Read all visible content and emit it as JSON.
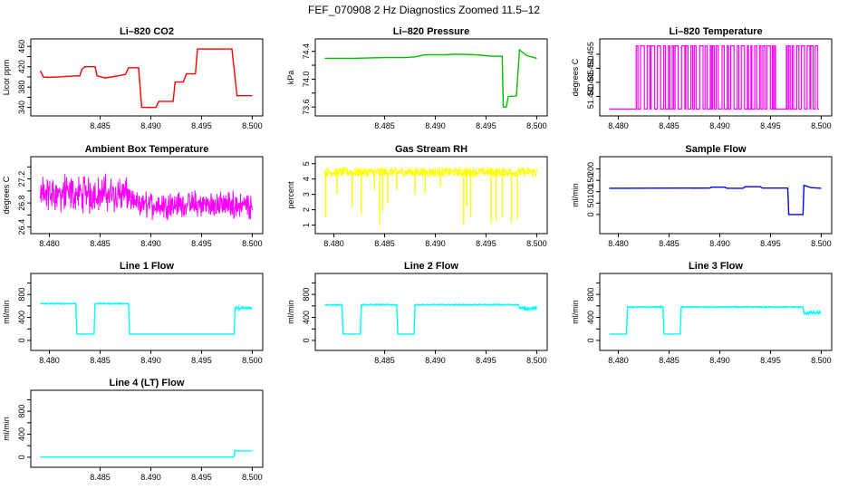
{
  "figure_title": "FEF_070908  2 Hz Diagnostics Zoomed 11.5–12",
  "chart_data": [
    {
      "type": "line",
      "title": "Li–820 CO2",
      "xlabel": "",
      "ylabel": "Licor ppm",
      "color": "#ff0000",
      "xlim": [
        8.4787,
        8.5005
      ],
      "ylim": [
        334,
        464
      ],
      "xticks": [
        8.49,
        8.495,
        8.5,
        8.485
      ],
      "xtick_labels": [
        "8.490",
        "8.495",
        "8.500",
        "8.485"
      ],
      "yticks": [
        340,
        360,
        380,
        400,
        420,
        440,
        460
      ],
      "ytick_labels": [
        "340",
        "",
        "380",
        "",
        "420",
        "",
        "460"
      ],
      "points": [
        [
          8.4791,
          412
        ],
        [
          8.4794,
          400
        ],
        [
          8.4798,
          399
        ],
        [
          8.481,
          400
        ],
        [
          8.4825,
          402
        ],
        [
          8.483,
          402
        ],
        [
          8.4832,
          415
        ],
        [
          8.4835,
          420
        ],
        [
          8.4845,
          420
        ],
        [
          8.4847,
          402
        ],
        [
          8.4855,
          398
        ],
        [
          8.487,
          403
        ],
        [
          8.4875,
          405
        ],
        [
          8.4878,
          418
        ],
        [
          8.4885,
          418
        ],
        [
          8.4888,
          418
        ],
        [
          8.4891,
          340
        ],
        [
          8.4905,
          340
        ],
        [
          8.4908,
          352
        ],
        [
          8.4922,
          352
        ],
        [
          8.4924,
          390
        ],
        [
          8.4932,
          390
        ],
        [
          8.4935,
          406
        ],
        [
          8.4944,
          406
        ],
        [
          8.4946,
          455
        ],
        [
          8.498,
          455
        ],
        [
          8.4985,
          363
        ],
        [
          8.5,
          363
        ]
      ]
    },
    {
      "type": "line",
      "title": "Li–820 Pressure",
      "xlabel": "",
      "ylabel": "kPa",
      "color": "#00bb00",
      "xlim": [
        8.4787,
        8.5005
      ],
      "ylim": [
        73.55,
        74.5
      ],
      "xticks": [
        8.485,
        8.49,
        8.495,
        8.5
      ],
      "xtick_labels": [
        "8.485",
        "8.490",
        "8.495",
        "8.500"
      ],
      "yticks": [
        73.6,
        73.8,
        74.0,
        74.2,
        74.4
      ],
      "ytick_labels": [
        "73.6",
        "",
        "74.0",
        "",
        "74.4"
      ],
      "points": [
        [
          8.4791,
          74.3
        ],
        [
          8.482,
          74.3
        ],
        [
          8.485,
          74.31
        ],
        [
          8.487,
          74.31
        ],
        [
          8.488,
          74.32
        ],
        [
          8.489,
          74.35
        ],
        [
          8.491,
          74.35
        ],
        [
          8.492,
          74.36
        ],
        [
          8.494,
          74.35
        ],
        [
          8.4955,
          74.33
        ],
        [
          8.4966,
          74.33
        ],
        [
          8.4967,
          73.6
        ],
        [
          8.497,
          73.6
        ],
        [
          8.4972,
          73.75
        ],
        [
          8.498,
          73.76
        ],
        [
          8.4983,
          74.42
        ],
        [
          8.499,
          74.34
        ],
        [
          8.5,
          74.3
        ]
      ]
    },
    {
      "type": "line",
      "title": "Li–820 Temperature",
      "xlabel": "",
      "ylabel": "degrees C",
      "color": "#ff00ff",
      "xlim": [
        8.4787,
        8.5005
      ],
      "ylim": [
        51.435,
        51.4585
      ],
      "xticks": [
        8.48,
        8.485,
        8.49,
        8.495,
        8.5
      ],
      "xtick_labels": [
        "8.480",
        "8.485",
        "8.490",
        "8.495",
        "8.500"
      ],
      "yticks": [
        51.44,
        51.445,
        51.45,
        51.455
      ],
      "ytick_labels": [
        "51.440",
        "51.445",
        "51.450",
        "51.455"
      ],
      "square_wave": {
        "low": 51.4355,
        "high": 51.458,
        "active_ranges": [
          [
            8.4815,
            8.4955
          ],
          [
            8.4963,
            8.4998
          ]
        ],
        "switch_period": 0.00022
      }
    },
    {
      "type": "line",
      "title": "Ambient Box Temperature",
      "xlabel": "",
      "ylabel": "degrees C",
      "color": "#ff00ff",
      "xlim": [
        8.4787,
        8.5005
      ],
      "ylim": [
        26.38,
        27.48
      ],
      "xticks": [
        8.48,
        8.485,
        8.49,
        8.495,
        8.5
      ],
      "xtick_labels": [
        "8.480",
        "8.485",
        "8.490",
        "8.495",
        "8.500"
      ],
      "yticks": [
        26.4,
        26.6,
        26.8,
        27.0,
        27.2,
        27.4
      ],
      "ytick_labels": [
        "26.4",
        "",
        "26.8",
        "",
        "27.2",
        ""
      ],
      "noise_segments": [
        {
          "x": [
            8.4791,
            8.488
          ],
          "center": 26.95,
          "amp": 0.28
        },
        {
          "x": [
            8.488,
            8.5
          ],
          "center": 26.77,
          "amp": 0.2
        }
      ]
    },
    {
      "type": "line",
      "title": "Gas Stream RH",
      "xlabel": "",
      "ylabel": "percent",
      "color": "#ffff00",
      "xlim": [
        8.4787,
        8.5005
      ],
      "ylim": [
        0.8,
        5.1
      ],
      "xticks": [
        8.48,
        8.485,
        8.49,
        8.495,
        8.5
      ],
      "xtick_labels": [
        "8.480",
        "8.485",
        "8.490",
        "8.495",
        "8.500"
      ],
      "yticks": [
        1,
        2,
        3,
        4,
        5
      ],
      "ytick_labels": [
        "1",
        "2",
        "3",
        "4",
        "5"
      ],
      "base": 4.45,
      "amp": 0.3,
      "x_range": [
        8.4791,
        8.5
      ],
      "spikes": [
        [
          8.4792,
          1.5
        ],
        [
          8.4803,
          3.0
        ],
        [
          8.4818,
          2.2
        ],
        [
          8.4827,
          1.7
        ],
        [
          8.484,
          3.3
        ],
        [
          8.4845,
          1.0
        ],
        [
          8.4848,
          1.9
        ],
        [
          8.4853,
          2.4
        ],
        [
          8.4862,
          3.3
        ],
        [
          8.488,
          3.0
        ],
        [
          8.489,
          3.1
        ],
        [
          8.4905,
          3.5
        ],
        [
          8.4928,
          1.0
        ],
        [
          8.4931,
          2.2
        ],
        [
          8.4935,
          1.5
        ],
        [
          8.4955,
          1.1
        ],
        [
          8.496,
          1.3
        ],
        [
          8.4966,
          1.5
        ],
        [
          8.4975,
          1.2
        ],
        [
          8.4981,
          1.4
        ]
      ]
    },
    {
      "type": "line",
      "title": "Sample Flow",
      "xlabel": "",
      "ylabel": "ml/min",
      "color": "#0000ff",
      "xlim": [
        8.4787,
        8.5005
      ],
      "ylim": [
        -60,
        230
      ],
      "xticks": [
        8.48,
        8.485,
        8.49,
        8.495,
        8.5
      ],
      "xtick_labels": [
        "8.480",
        "8.485",
        "8.490",
        "8.495",
        "8.500"
      ],
      "yticks": [
        0,
        50,
        100,
        150,
        200
      ],
      "ytick_labels": [
        "0",
        "50",
        "100",
        "150",
        "200"
      ],
      "points": [
        [
          8.4791,
          115
        ],
        [
          8.489,
          116
        ],
        [
          8.4892,
          120
        ],
        [
          8.4905,
          120
        ],
        [
          8.4907,
          115
        ],
        [
          8.4923,
          115
        ],
        [
          8.4925,
          122
        ],
        [
          8.494,
          122
        ],
        [
          8.4942,
          116
        ],
        [
          8.4967,
          116
        ],
        [
          8.4968,
          0
        ],
        [
          8.4982,
          0
        ],
        [
          8.4983,
          128
        ],
        [
          8.499,
          118
        ],
        [
          8.5,
          115
        ]
      ]
    },
    {
      "type": "line",
      "title": "Line 1 Flow",
      "xlabel": "",
      "ylabel": "ml/min",
      "color": "#00ffff",
      "xlim": [
        8.4787,
        8.5005
      ],
      "ylim": [
        -80,
        1070
      ],
      "xticks": [
        8.48,
        8.485,
        8.49,
        8.495,
        8.5
      ],
      "xtick_labels": [
        "8.480",
        "8.485",
        "8.490",
        "8.495",
        "8.500"
      ],
      "yticks": [
        0,
        200,
        400,
        600,
        800,
        1000
      ],
      "ytick_labels": [
        "0",
        "",
        "400",
        "",
        "800",
        ""
      ],
      "points": [
        [
          8.4791,
          640
        ],
        [
          8.4826,
          640
        ],
        [
          8.4827,
          110
        ],
        [
          8.4844,
          110
        ],
        [
          8.4845,
          640
        ],
        [
          8.4878,
          640
        ],
        [
          8.4879,
          110
        ],
        [
          8.4982,
          110
        ],
        [
          8.4983,
          560
        ],
        [
          8.5,
          560
        ]
      ],
      "noisy_ranges": [
        [
          8.4791,
          8.4826,
          15
        ],
        [
          8.4845,
          8.4878,
          15
        ],
        [
          8.4983,
          8.5,
          40
        ]
      ]
    },
    {
      "type": "line",
      "title": "Line 2 Flow",
      "xlabel": "",
      "ylabel": "ml/min",
      "color": "#00ffff",
      "xlim": [
        8.4787,
        8.5005
      ],
      "ylim": [
        -80,
        1070
      ],
      "xticks": [
        8.49,
        8.495,
        8.5,
        8.485
      ],
      "xtick_labels": [
        "8.490",
        "8.495",
        "8.500",
        "8.485"
      ],
      "yticks": [
        0,
        200,
        400,
        600,
        800,
        1000
      ],
      "ytick_labels": [
        "0",
        "",
        "400",
        "",
        "800",
        ""
      ],
      "points": [
        [
          8.4791,
          620
        ],
        [
          8.4808,
          620
        ],
        [
          8.4809,
          110
        ],
        [
          8.4826,
          110
        ],
        [
          8.4827,
          620
        ],
        [
          8.4862,
          620
        ],
        [
          8.4863,
          110
        ],
        [
          8.4879,
          110
        ],
        [
          8.488,
          620
        ],
        [
          8.4982,
          620
        ],
        [
          8.4983,
          560
        ],
        [
          8.5,
          560
        ]
      ],
      "noisy_ranges": [
        [
          8.4791,
          8.4808,
          15
        ],
        [
          8.4827,
          8.4862,
          15
        ],
        [
          8.488,
          8.4982,
          15
        ],
        [
          8.4983,
          8.5,
          40
        ]
      ]
    },
    {
      "type": "line",
      "title": "Line 3 Flow",
      "xlabel": "",
      "ylabel": "ml/min",
      "color": "#00ffff",
      "xlim": [
        8.4787,
        8.5005
      ],
      "ylim": [
        -80,
        1070
      ],
      "xticks": [
        8.48,
        8.485,
        8.49,
        8.495,
        8.5
      ],
      "xtick_labels": [
        "8.480",
        "8.485",
        "8.490",
        "8.495",
        "8.500"
      ],
      "yticks": [
        0,
        200,
        400,
        600,
        800,
        1000
      ],
      "ytick_labels": [
        "0",
        "",
        "400",
        "",
        "800",
        ""
      ],
      "points": [
        [
          8.4791,
          110
        ],
        [
          8.4808,
          110
        ],
        [
          8.4809,
          580
        ],
        [
          8.4844,
          580
        ],
        [
          8.4845,
          110
        ],
        [
          8.4861,
          110
        ],
        [
          8.4862,
          580
        ],
        [
          8.4982,
          580
        ],
        [
          8.4983,
          480
        ],
        [
          8.5,
          480
        ]
      ],
      "noisy_ranges": [
        [
          8.4809,
          8.4844,
          15
        ],
        [
          8.4862,
          8.4982,
          15
        ],
        [
          8.4983,
          8.5,
          40
        ]
      ]
    },
    {
      "type": "line",
      "title": "Line 4 (LT) Flow",
      "xlabel": "",
      "ylabel": "ml/min",
      "color": "#00ffff",
      "xlim": [
        8.4787,
        8.5005
      ],
      "ylim": [
        -80,
        1070
      ],
      "xticks": [
        8.49,
        8.495,
        8.5,
        8.485
      ],
      "xtick_labels": [
        "8.490",
        "8.495",
        "8.500",
        "8.485"
      ],
      "yticks": [
        0,
        200,
        400,
        600,
        800,
        1000
      ],
      "ytick_labels": [
        "0",
        "",
        "400",
        "",
        "800",
        ""
      ],
      "points": [
        [
          8.4791,
          5
        ],
        [
          8.4982,
          5
        ],
        [
          8.4983,
          120
        ],
        [
          8.4985,
          110
        ],
        [
          8.5,
          110
        ]
      ],
      "noisy_ranges": []
    }
  ]
}
